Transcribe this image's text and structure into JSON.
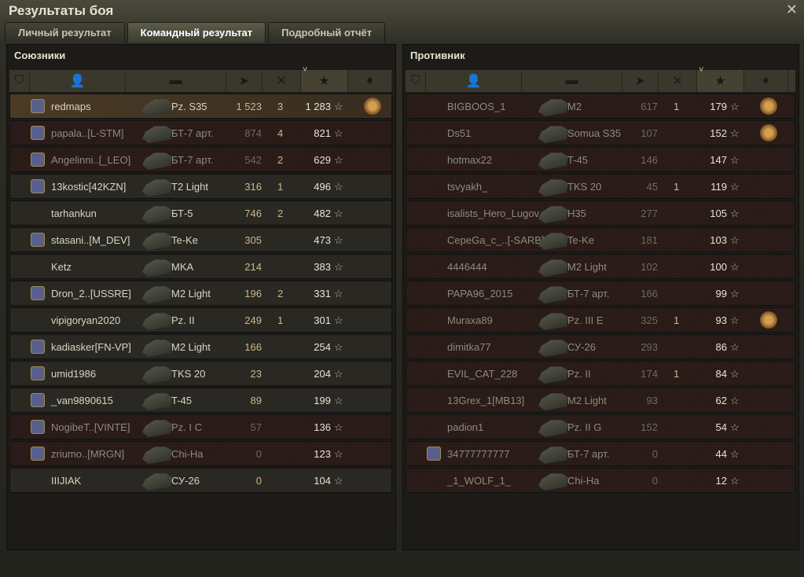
{
  "window": {
    "title": "Результаты боя",
    "close_icon": "close-icon"
  },
  "tabs": [
    {
      "label": "Личный результат",
      "active": false
    },
    {
      "label": "Командный результат",
      "active": true
    },
    {
      "label": "Подробный отчёт",
      "active": false
    }
  ],
  "columns": [
    "rank-icon",
    "player-icon",
    "tank-icon",
    "damage-icon",
    "frags-icon",
    "experience-icon",
    "medal-icon"
  ],
  "sorted_column": "experience",
  "allies": {
    "title": "Союзники",
    "rows": [
      {
        "name": "redmaps",
        "tank": "Pz. S35",
        "damage": "1 523",
        "frags": "3",
        "xp": "1 283",
        "badge": true,
        "medal": "2",
        "me": true,
        "dead": false
      },
      {
        "name": "papala..[L-STM]",
        "tank": "БТ-7 арт.",
        "damage": "874",
        "frags": "4",
        "xp": "821",
        "badge": true,
        "dead": true
      },
      {
        "name": "Angelinni..[_LEO]",
        "tank": "БТ-7 арт.",
        "damage": "542",
        "frags": "2",
        "xp": "629",
        "badge": true,
        "dead": true
      },
      {
        "name": "13kostic[42KZN]",
        "tank": "T2 Light",
        "damage": "316",
        "frags": "1",
        "xp": "496",
        "badge": true,
        "dead": false
      },
      {
        "name": "tarhankun",
        "tank": "БТ-5",
        "damage": "746",
        "frags": "2",
        "xp": "482",
        "badge": false,
        "dead": false
      },
      {
        "name": "stasani..[M_DEV]",
        "tank": "Te-Ke",
        "damage": "305",
        "frags": "",
        "xp": "473",
        "badge": true,
        "dead": false
      },
      {
        "name": "Ketz",
        "tank": "MKA",
        "damage": "214",
        "frags": "",
        "xp": "383",
        "badge": false,
        "dead": false
      },
      {
        "name": "Dron_2..[USSRE]",
        "tank": "M2 Light",
        "damage": "196",
        "frags": "2",
        "xp": "331",
        "badge": true,
        "dead": false
      },
      {
        "name": "vipigoryan2020",
        "tank": "Pz. II",
        "damage": "249",
        "frags": "1",
        "xp": "301",
        "badge": false,
        "dead": false
      },
      {
        "name": "kadiasker[FN-VP]",
        "tank": "M2 Light",
        "damage": "166",
        "frags": "",
        "xp": "254",
        "badge": true,
        "dead": false
      },
      {
        "name": "umid1986",
        "tank": "TKS 20",
        "damage": "23",
        "frags": "",
        "xp": "204",
        "badge": true,
        "dead": false
      },
      {
        "name": "_van9890615",
        "tank": "T-45",
        "damage": "89",
        "frags": "",
        "xp": "199",
        "badge": true,
        "dead": false
      },
      {
        "name": "NogibeT..[VINTE]",
        "tank": "Pz. I C",
        "damage": "57",
        "frags": "",
        "xp": "136",
        "badge": true,
        "dead": true
      },
      {
        "name": "zriumo..[MRGN]",
        "tank": "Chi-Ha",
        "damage": "0",
        "frags": "",
        "xp": "123",
        "badge": true,
        "dead": true
      },
      {
        "name": "IIIJIAK",
        "tank": "СУ-26",
        "damage": "0",
        "frags": "",
        "xp": "104",
        "badge": false,
        "dead": false
      }
    ]
  },
  "enemies": {
    "title": "Противник",
    "rows": [
      {
        "name": "BIGBOOS_1",
        "tank": "M2",
        "damage": "617",
        "frags": "1",
        "xp": "179",
        "medal": "",
        "dead": true
      },
      {
        "name": "Ds51",
        "tank": "Somua S35",
        "damage": "107",
        "frags": "",
        "xp": "152",
        "medal": "",
        "dead": true
      },
      {
        "name": "hotmax22",
        "tank": "T-45",
        "damage": "146",
        "frags": "",
        "xp": "147",
        "dead": true
      },
      {
        "name": "tsvyakh_",
        "tank": "TKS 20",
        "damage": "45",
        "frags": "1",
        "xp": "119",
        "dead": true
      },
      {
        "name": "isalists_Hero_Lugov..",
        "tank": "H35",
        "damage": "277",
        "frags": "",
        "xp": "105",
        "dead": true
      },
      {
        "name": "CepeGa_c_..[-SARB]",
        "tank": "Te-Ke",
        "damage": "181",
        "frags": "",
        "xp": "103",
        "dead": true
      },
      {
        "name": "4446444",
        "tank": "M2 Light",
        "damage": "102",
        "frags": "",
        "xp": "100",
        "dead": true
      },
      {
        "name": "PAPA96_2015",
        "tank": "БТ-7 арт.",
        "damage": "166",
        "frags": "",
        "xp": "99",
        "dead": true
      },
      {
        "name": "Muraxa89",
        "tank": "Pz. III E",
        "damage": "325",
        "frags": "1",
        "xp": "93",
        "medal": "",
        "dead": true
      },
      {
        "name": "dimitka77",
        "tank": "СУ-26",
        "damage": "293",
        "frags": "",
        "xp": "86",
        "dead": true
      },
      {
        "name": "EVIL_CAT_228",
        "tank": "Pz. II",
        "damage": "174",
        "frags": "1",
        "xp": "84",
        "dead": true
      },
      {
        "name": "13Grex_1[MB13]",
        "tank": "M2 Light",
        "damage": "93",
        "frags": "",
        "xp": "62",
        "dead": true
      },
      {
        "name": "padion1",
        "tank": "Pz. II G",
        "damage": "152",
        "frags": "",
        "xp": "54",
        "dead": true
      },
      {
        "name": "34777777777",
        "tank": "БТ-7 арт.",
        "damage": "0",
        "frags": "",
        "xp": "44",
        "badge": true,
        "dead": true
      },
      {
        "name": "_1_WOLF_1_",
        "tank": "Chi-Ha",
        "damage": "0",
        "frags": "",
        "xp": "12",
        "dead": true
      }
    ]
  },
  "star_glyph": "☆"
}
